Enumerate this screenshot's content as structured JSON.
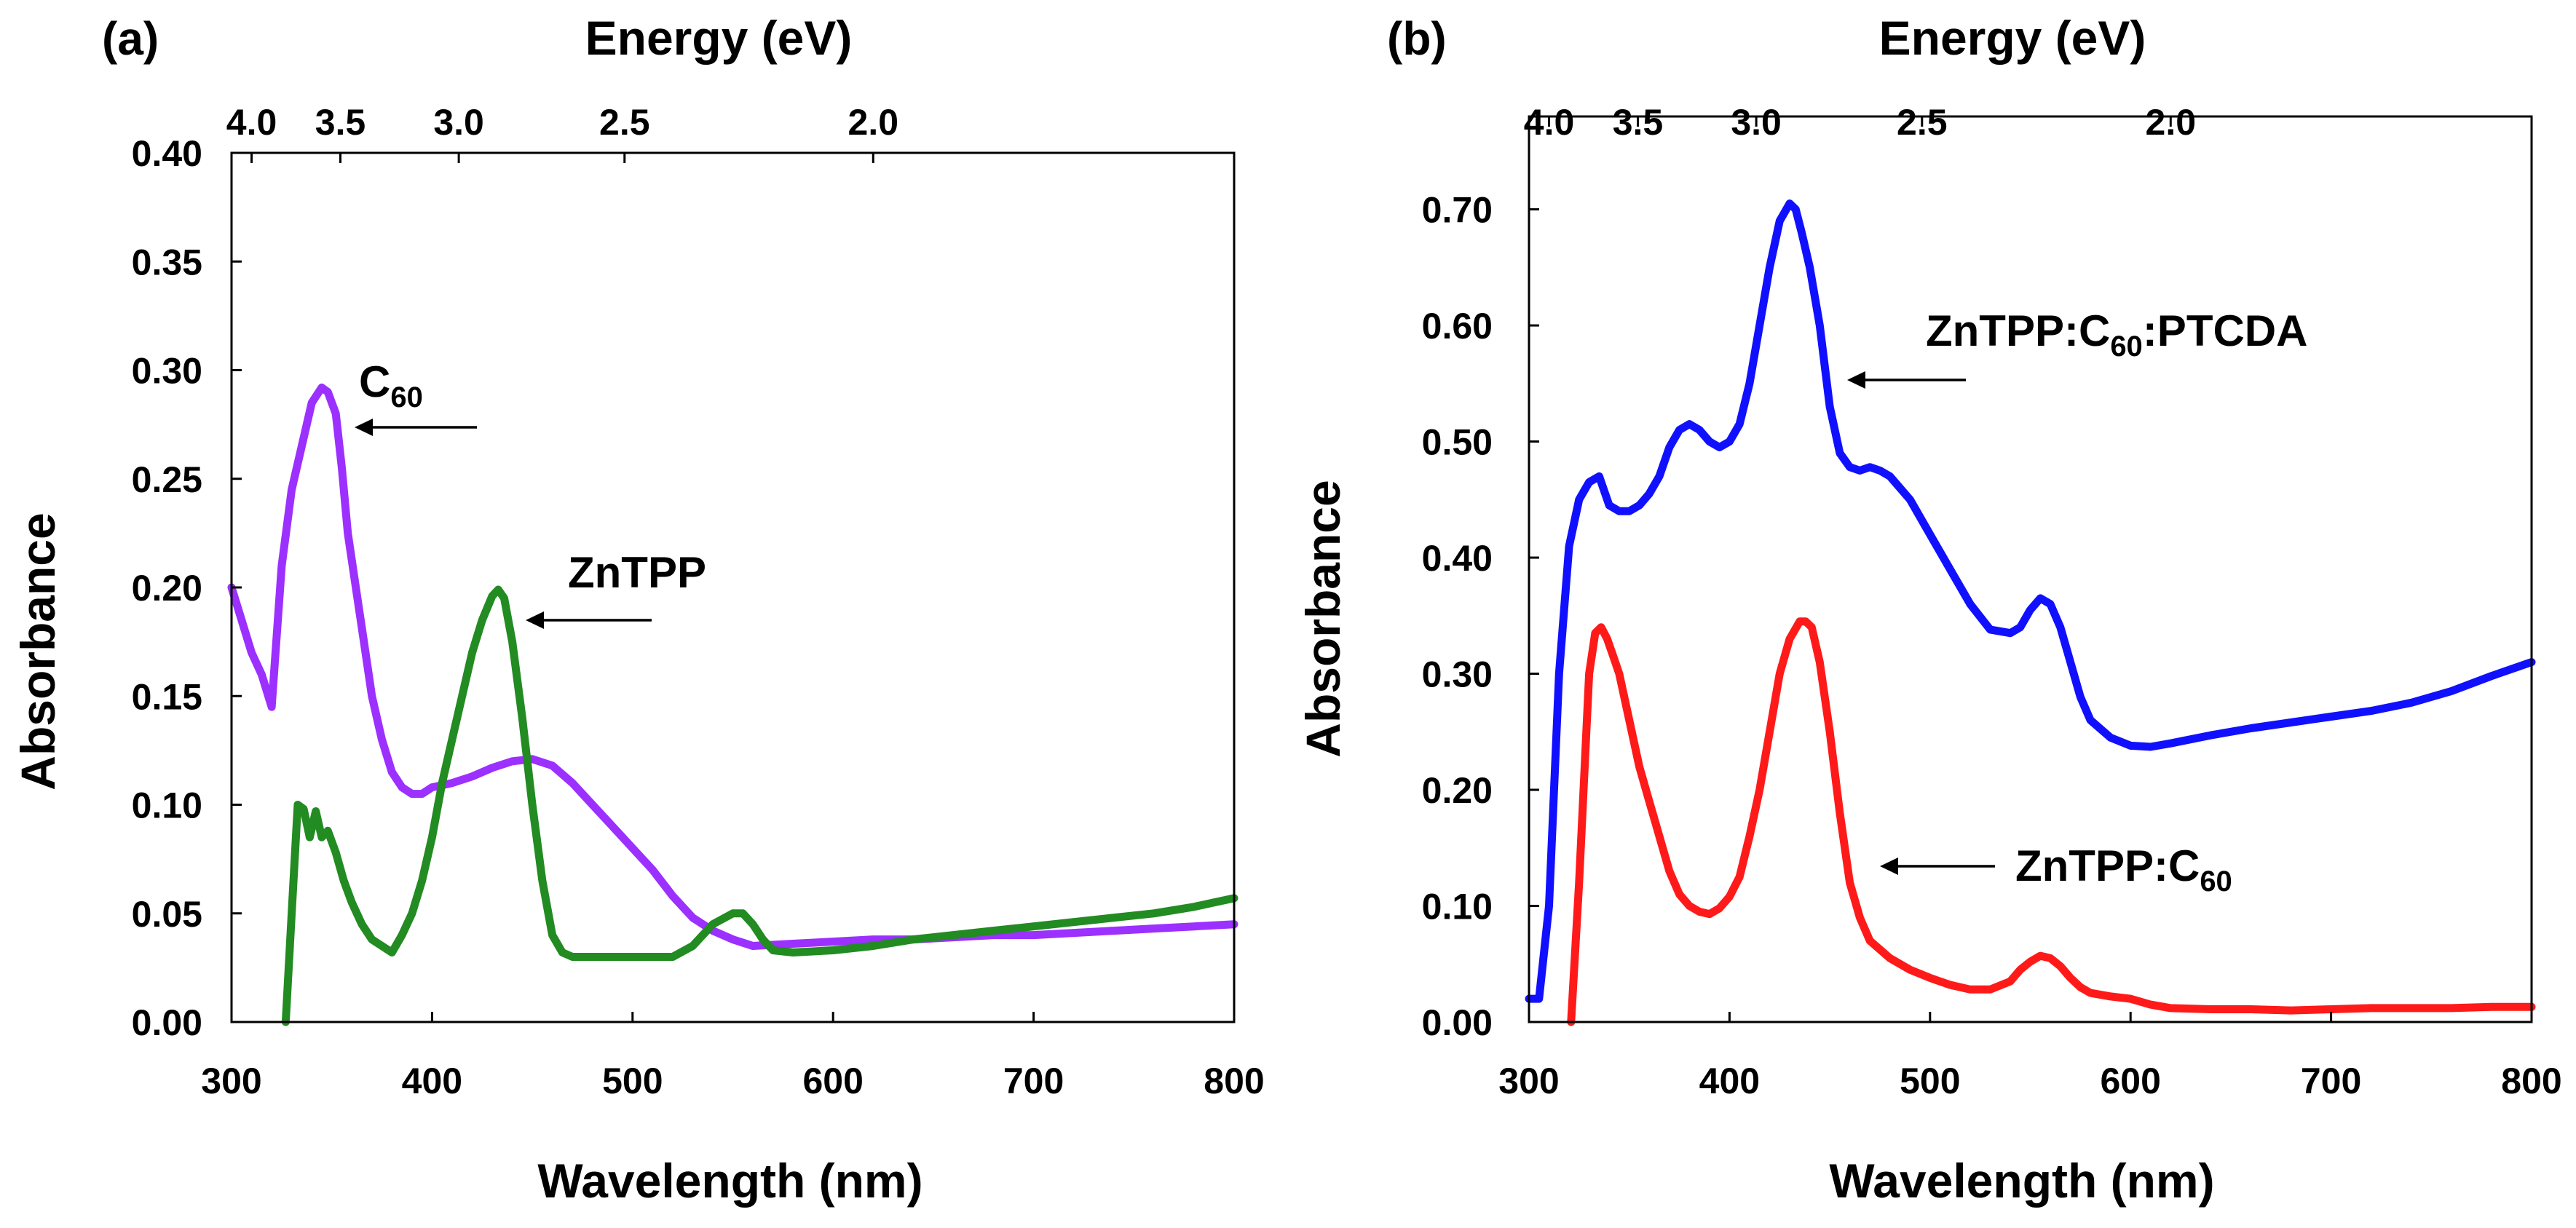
{
  "chart_data": [
    {
      "panel_label": "(a)",
      "type": "line",
      "xlabel": "Wavelength (nm)",
      "ylabel": "Absorbance",
      "top_axis_label": "Energy (eV)",
      "xlim": [
        300,
        800
      ],
      "ylim": [
        0,
        0.4
      ],
      "x_ticks": [
        "300",
        "400",
        "500",
        "600",
        "700",
        "800"
      ],
      "y_ticks": [
        "0.00",
        "0.05",
        "0.10",
        "0.15",
        "0.20",
        "0.25",
        "0.30",
        "0.35",
        "0.40"
      ],
      "top_ticks": [
        "4.0",
        "3.5",
        "3.0",
        "2.5",
        "2.0"
      ],
      "top_tick_values": [
        4.0,
        3.5,
        3.0,
        2.5,
        2.0
      ],
      "annotations": [
        {
          "text": "C",
          "sub": "60",
          "points_to_series": "C60"
        },
        {
          "text": "ZnTPP",
          "sub": "",
          "points_to_series": "ZnTPP"
        }
      ],
      "series": [
        {
          "name": "C60",
          "color": "#9b30ff",
          "x": [
            300,
            305,
            310,
            315,
            320,
            325,
            330,
            335,
            340,
            345,
            348,
            352,
            355,
            358,
            362,
            366,
            370,
            375,
            380,
            385,
            390,
            395,
            400,
            410,
            420,
            430,
            440,
            450,
            460,
            470,
            480,
            490,
            500,
            510,
            520,
            530,
            540,
            550,
            560,
            580,
            600,
            620,
            640,
            660,
            680,
            700,
            720,
            740,
            760,
            780,
            800
          ],
          "y": [
            0.2,
            0.185,
            0.17,
            0.16,
            0.145,
            0.21,
            0.245,
            0.265,
            0.285,
            0.292,
            0.29,
            0.28,
            0.255,
            0.225,
            0.2,
            0.175,
            0.15,
            0.13,
            0.115,
            0.108,
            0.105,
            0.105,
            0.108,
            0.11,
            0.113,
            0.117,
            0.12,
            0.121,
            0.118,
            0.11,
            0.1,
            0.09,
            0.08,
            0.07,
            0.058,
            0.048,
            0.042,
            0.038,
            0.035,
            0.036,
            0.037,
            0.038,
            0.038,
            0.039,
            0.04,
            0.04,
            0.041,
            0.042,
            0.043,
            0.044,
            0.045
          ]
        },
        {
          "name": "ZnTPP",
          "color": "#228b22",
          "x": [
            327,
            330,
            333,
            336,
            339,
            342,
            345,
            348,
            352,
            356,
            360,
            365,
            370,
            375,
            380,
            385,
            390,
            395,
            400,
            405,
            410,
            415,
            420,
            425,
            430,
            433,
            436,
            440,
            445,
            450,
            455,
            460,
            465,
            470,
            480,
            490,
            500,
            510,
            520,
            530,
            540,
            550,
            555,
            560,
            565,
            570,
            580,
            600,
            620,
            640,
            660,
            680,
            700,
            720,
            740,
            760,
            780,
            790,
            800
          ],
          "y": [
            0.0,
            0.05,
            0.1,
            0.098,
            0.085,
            0.097,
            0.085,
            0.088,
            0.078,
            0.065,
            0.055,
            0.045,
            0.038,
            0.035,
            0.032,
            0.04,
            0.05,
            0.065,
            0.085,
            0.11,
            0.13,
            0.15,
            0.17,
            0.185,
            0.196,
            0.199,
            0.195,
            0.175,
            0.14,
            0.1,
            0.065,
            0.04,
            0.032,
            0.03,
            0.03,
            0.03,
            0.03,
            0.03,
            0.03,
            0.035,
            0.045,
            0.05,
            0.05,
            0.045,
            0.038,
            0.033,
            0.032,
            0.033,
            0.035,
            0.038,
            0.04,
            0.042,
            0.044,
            0.046,
            0.048,
            0.05,
            0.053,
            0.055,
            0.057
          ]
        }
      ]
    },
    {
      "panel_label": "(b)",
      "type": "line",
      "xlabel": "Wavelength (nm)",
      "ylabel": "Absorbance",
      "top_axis_label": "Energy (eV)",
      "xlim": [
        300,
        800
      ],
      "ylim": [
        0,
        0.78
      ],
      "x_ticks": [
        "300",
        "400",
        "500",
        "600",
        "700",
        "800"
      ],
      "y_ticks": [
        "0.00",
        "0.10",
        "0.20",
        "0.30",
        "0.40",
        "0.50",
        "0.60",
        "0.70"
      ],
      "top_ticks": [
        "4.0",
        "3.5",
        "3.0",
        "2.5",
        "2.0"
      ],
      "top_tick_values": [
        4.0,
        3.5,
        3.0,
        2.5,
        2.0
      ],
      "annotations": [
        {
          "text": "ZnTPP:C",
          "sub": "60",
          "text_after": ":PTCDA",
          "points_to_series": "ZnTPP:C60:PTCDA"
        },
        {
          "text": "ZnTPP:C",
          "sub": "60",
          "text_after": "",
          "points_to_series": "ZnTPP:C60"
        }
      ],
      "series": [
        {
          "name": "ZnTPP:C60:PTCDA",
          "color": "#1010ff",
          "x": [
            300,
            305,
            310,
            315,
            320,
            325,
            330,
            335,
            340,
            345,
            350,
            355,
            360,
            365,
            370,
            375,
            380,
            385,
            390,
            395,
            400,
            405,
            410,
            415,
            420,
            425,
            430,
            433,
            436,
            440,
            445,
            450,
            455,
            460,
            465,
            470,
            475,
            480,
            490,
            500,
            510,
            520,
            530,
            540,
            545,
            550,
            555,
            560,
            565,
            570,
            575,
            580,
            590,
            600,
            610,
            620,
            640,
            660,
            680,
            700,
            720,
            740,
            760,
            780,
            800
          ],
          "y": [
            0.02,
            0.02,
            0.1,
            0.3,
            0.41,
            0.45,
            0.465,
            0.47,
            0.445,
            0.44,
            0.44,
            0.445,
            0.455,
            0.47,
            0.495,
            0.51,
            0.515,
            0.51,
            0.5,
            0.495,
            0.5,
            0.515,
            0.55,
            0.6,
            0.65,
            0.69,
            0.705,
            0.7,
            0.68,
            0.65,
            0.6,
            0.53,
            0.49,
            0.478,
            0.475,
            0.478,
            0.475,
            0.47,
            0.45,
            0.42,
            0.39,
            0.36,
            0.338,
            0.335,
            0.34,
            0.355,
            0.365,
            0.36,
            0.34,
            0.31,
            0.28,
            0.26,
            0.245,
            0.238,
            0.237,
            0.24,
            0.247,
            0.253,
            0.258,
            0.263,
            0.268,
            0.275,
            0.285,
            0.298,
            0.31
          ]
        },
        {
          "name": "ZnTPP:C60",
          "color": "#ff1a1a",
          "x": [
            321,
            325,
            330,
            333,
            336,
            339,
            342,
            345,
            350,
            355,
            360,
            365,
            370,
            375,
            380,
            385,
            390,
            395,
            400,
            405,
            410,
            415,
            420,
            425,
            430,
            435,
            438,
            441,
            445,
            450,
            455,
            460,
            465,
            470,
            480,
            490,
            500,
            510,
            520,
            530,
            540,
            545,
            550,
            555,
            560,
            565,
            570,
            575,
            580,
            590,
            600,
            610,
            620,
            640,
            660,
            680,
            700,
            720,
            740,
            760,
            780,
            800
          ],
          "y": [
            0.0,
            0.12,
            0.3,
            0.335,
            0.34,
            0.33,
            0.315,
            0.3,
            0.26,
            0.22,
            0.19,
            0.16,
            0.13,
            0.11,
            0.1,
            0.095,
            0.093,
            0.098,
            0.108,
            0.125,
            0.16,
            0.2,
            0.25,
            0.3,
            0.33,
            0.345,
            0.345,
            0.34,
            0.31,
            0.25,
            0.18,
            0.12,
            0.09,
            0.07,
            0.055,
            0.045,
            0.038,
            0.032,
            0.028,
            0.028,
            0.035,
            0.045,
            0.052,
            0.057,
            0.055,
            0.048,
            0.038,
            0.03,
            0.025,
            0.022,
            0.02,
            0.015,
            0.012,
            0.011,
            0.011,
            0.01,
            0.011,
            0.012,
            0.012,
            0.012,
            0.013,
            0.013
          ]
        }
      ]
    }
  ]
}
